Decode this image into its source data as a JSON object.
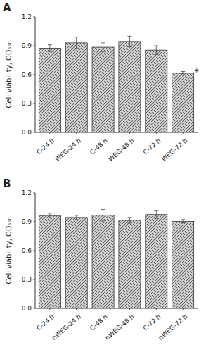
{
  "chart_data": [
    {
      "type": "bar",
      "title": "A",
      "categories": [
        "C-24 h",
        "WEG-24 h",
        "C-48 h",
        "WEG-48 h",
        "C-72 h",
        "WEG-72 h"
      ],
      "values": [
        0.875,
        0.93,
        0.885,
        0.945,
        0.855,
        0.615
      ],
      "errors": [
        0.035,
        0.06,
        0.045,
        0.055,
        0.045,
        0.018
      ],
      "y_label": "Cell viability, OD₅₅₀",
      "ylim": [
        0.0,
        1.2
      ],
      "yticks": [
        {
          "value": 0,
          "label": "0.0"
        },
        0.3,
        0.6,
        0.9,
        1.2
      ],
      "annotations": [
        {
          "text": "*",
          "category": "WEG-72 h"
        }
      ],
      "color": "#cccccc",
      "grid": false
    },
    {
      "type": "bar",
      "title": "B",
      "categories": [
        "C-24 h",
        "nWEG-24 h",
        "C-48 h",
        "nWEG-48 h",
        "C-72 h",
        "nWEG-72 h"
      ],
      "values": [
        0.965,
        0.945,
        0.968,
        0.915,
        0.975,
        0.905
      ],
      "errors": [
        0.025,
        0.022,
        0.06,
        0.03,
        0.04,
        0.018
      ],
      "y_label": "Cell viability, OD₅₅₀",
      "ylim": [
        0.0,
        1.2
      ],
      "yticks": [
        {
          "value": 0,
          "label": "0.0"
        },
        0.3,
        0.6,
        0.9,
        1.2
      ],
      "color": "#cccccc",
      "grid": false
    }
  ]
}
